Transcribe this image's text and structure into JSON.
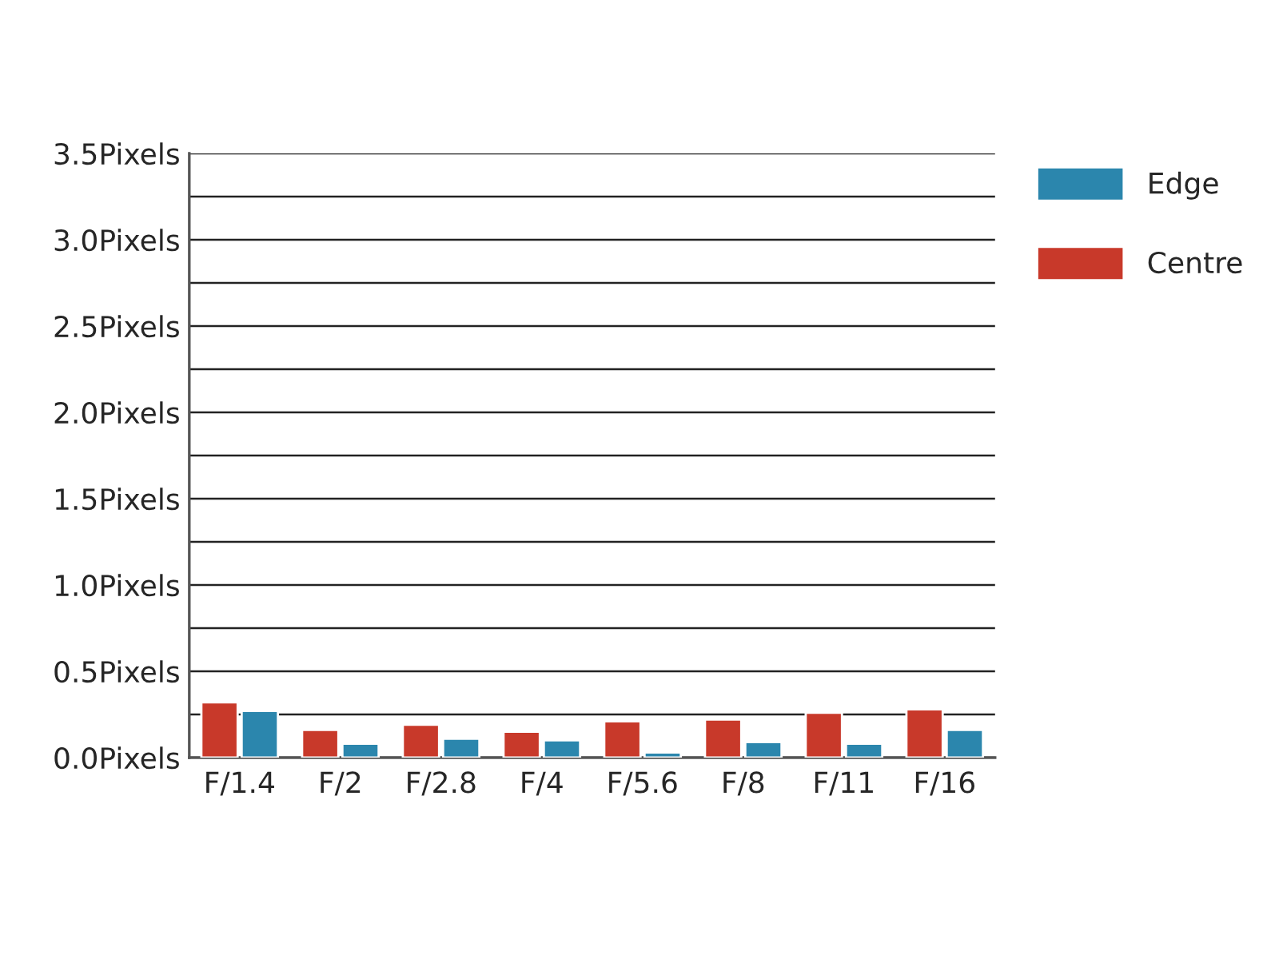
{
  "chart_data": {
    "type": "bar",
    "categories": [
      "F/1.4",
      "F/2",
      "F/2.8",
      "F/4",
      "F/5.6",
      "F/8",
      "F/11",
      "F/16"
    ],
    "series": [
      {
        "name": "Centre",
        "color": "#c8392a",
        "values": [
          0.32,
          0.16,
          0.19,
          0.15,
          0.21,
          0.22,
          0.26,
          0.28
        ]
      },
      {
        "name": "Edge",
        "color": "#2b86ad",
        "values": [
          0.27,
          0.08,
          0.11,
          0.1,
          0.03,
          0.09,
          0.08,
          0.16
        ]
      }
    ],
    "ylim": [
      0,
      3.5
    ],
    "yticks": [
      {
        "value": 0,
        "label": "0.0Pixels"
      },
      {
        "value": 0.25,
        "label": null
      },
      {
        "value": 0.5,
        "label": "0.5Pixels"
      },
      {
        "value": 0.75,
        "label": null
      },
      {
        "value": 1.0,
        "label": "1.0Pixels"
      },
      {
        "value": 1.25,
        "label": null
      },
      {
        "value": 1.5,
        "label": "1.5Pixels"
      },
      {
        "value": 1.75,
        "label": null
      },
      {
        "value": 2.0,
        "label": "2.0Pixels"
      },
      {
        "value": 2.25,
        "label": null
      },
      {
        "value": 2.5,
        "label": "2.5Pixels"
      },
      {
        "value": 2.75,
        "label": null
      },
      {
        "value": 3.0,
        "label": "3.0Pixels"
      },
      {
        "value": 3.25,
        "label": null
      },
      {
        "value": 3.5,
        "label": "3.5Pixels"
      }
    ],
    "grid": "y",
    "legend": "top right"
  }
}
